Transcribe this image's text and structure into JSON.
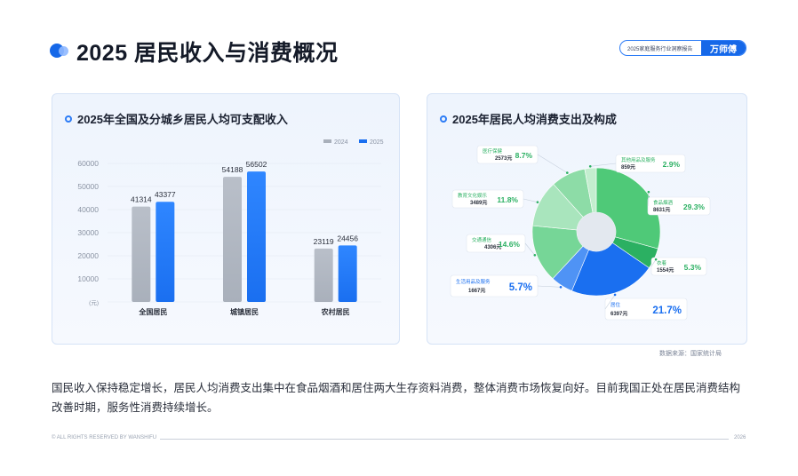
{
  "page": {
    "title": "2025 居民收入与消费概况",
    "brand_report": "2025家庭服务行业洞察报告",
    "brand_name": "万师傅",
    "source": "数据来源：国家统计局",
    "paragraph": "国民收入保持稳定增长，居民人均消费支出集中在食品烟酒和居住两大生存资料消费，整体消费市场恢复向好。目前我国正处在居民消费结构改善时期，服务性消费持续增长。",
    "footer_left": "© ALL RIGHTS RESERVED BY WANSHIFU",
    "footer_right": "2026"
  },
  "colors": {
    "accent": "#1668e8",
    "bar_2024": "#a9b0bb",
    "bar_2025": "#1a6ff0"
  },
  "chart_data": [
    {
      "type": "bar",
      "title": "2025年全国及分城乡居民人均可支配收入",
      "ylabel": "(元)",
      "categories": [
        "全国居民",
        "城镇居民",
        "农村居民"
      ],
      "series": [
        {
          "name": "2024",
          "values": [
            41314,
            54188,
            23119
          ],
          "color": "#a9b0bb"
        },
        {
          "name": "2025",
          "values": [
            43377,
            56502,
            24456
          ],
          "color": "#1a6ff0"
        }
      ],
      "ylim": [
        0,
        60000
      ],
      "yticks": [
        0,
        10000,
        20000,
        30000,
        40000,
        50000,
        60000
      ],
      "legend": "top-right"
    },
    {
      "type": "pie",
      "title": "2025年居民人均消费支出及构成",
      "slices": [
        {
          "label": "食品烟酒",
          "value": 8631,
          "percent": "29.3%",
          "color": "#4fc978"
        },
        {
          "label": "衣着",
          "value": 1554,
          "percent": "5.3%",
          "color": "#2bb062"
        },
        {
          "label": "居住",
          "value": 6397,
          "percent": "21.7%",
          "color": "#1a6ff0"
        },
        {
          "label": "生活用品及服务",
          "value": 1667,
          "percent": "5.7%",
          "color": "#4f93f5"
        },
        {
          "label": "交通通信",
          "value": 4306,
          "percent": "14.6%",
          "color": "#76d697"
        },
        {
          "label": "教育文化娱乐",
          "value": 3489,
          "percent": "11.8%",
          "color": "#a9e5bd"
        },
        {
          "label": "医疗保健",
          "value": 2573,
          "percent": "8.7%",
          "color": "#8ddca7"
        },
        {
          "label": "其他用品及服务",
          "value": 859,
          "percent": "2.9%",
          "color": "#c3eecf"
        }
      ],
      "value_unit": "元"
    }
  ]
}
